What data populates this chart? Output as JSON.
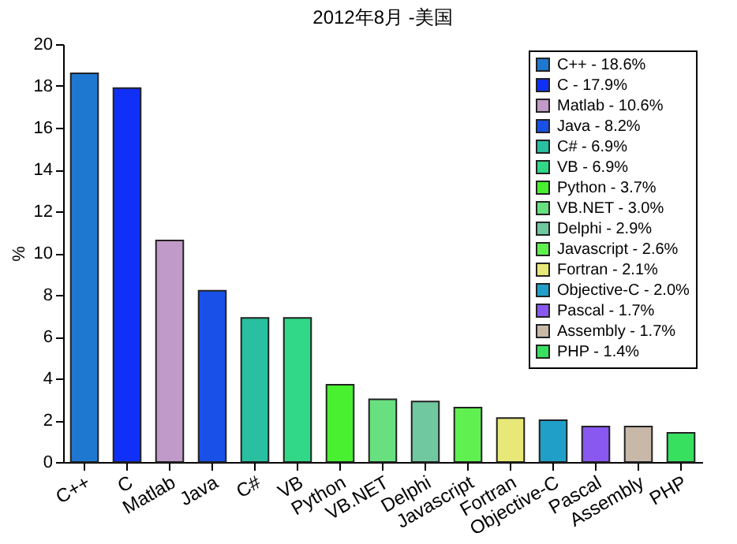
{
  "chart_data": {
    "type": "bar",
    "title": "2012年8月 -美国",
    "ylabel": "%",
    "categories": [
      "C++",
      "C",
      "Matlab",
      "Java",
      "C#",
      "VB",
      "Python",
      "VB.NET",
      "Delphi",
      "Javascript",
      "Fortran",
      "Objective-C",
      "Pascal",
      "Assembly",
      "PHP"
    ],
    "series": [
      {
        "name": "C++ - 18.6%",
        "color": "#1f78d0",
        "values": [
          18.6,
          null,
          null,
          null,
          null,
          null,
          null,
          null,
          null,
          null,
          null,
          null,
          null,
          null,
          null
        ]
      },
      {
        "name": "C - 17.9%",
        "color": "#1030f8",
        "values": [
          null,
          17.9,
          null,
          null,
          null,
          null,
          null,
          null,
          null,
          null,
          null,
          null,
          null,
          null,
          null
        ]
      },
      {
        "name": "Matlab - 10.6%",
        "color": "#c09ac8",
        "values": [
          null,
          null,
          10.6,
          null,
          null,
          null,
          null,
          null,
          null,
          null,
          null,
          null,
          null,
          null,
          null
        ]
      },
      {
        "name": "Java - 8.2%",
        "color": "#1850e8",
        "values": [
          null,
          null,
          null,
          8.2,
          null,
          null,
          null,
          null,
          null,
          null,
          null,
          null,
          null,
          null,
          null
        ]
      },
      {
        "name": "C# - 6.9%",
        "color": "#28c0a0",
        "values": [
          null,
          null,
          null,
          null,
          6.9,
          null,
          null,
          null,
          null,
          null,
          null,
          null,
          null,
          null,
          null
        ]
      },
      {
        "name": "VB - 6.9%",
        "color": "#30d888",
        "values": [
          null,
          null,
          null,
          null,
          null,
          6.9,
          null,
          null,
          null,
          null,
          null,
          null,
          null,
          null,
          null
        ]
      },
      {
        "name": "Python - 3.7%",
        "color": "#48f030",
        "values": [
          null,
          null,
          null,
          null,
          null,
          null,
          3.7,
          null,
          null,
          null,
          null,
          null,
          null,
          null,
          null
        ]
      },
      {
        "name": "VB.NET - 3.0%",
        "color": "#68e080",
        "values": [
          null,
          null,
          null,
          null,
          null,
          null,
          null,
          3.0,
          null,
          null,
          null,
          null,
          null,
          null,
          null
        ]
      },
      {
        "name": "Delphi - 2.9%",
        "color": "#70c8a0",
        "values": [
          null,
          null,
          null,
          null,
          null,
          null,
          null,
          null,
          2.9,
          null,
          null,
          null,
          null,
          null,
          null
        ]
      },
      {
        "name": "Javascript - 2.6%",
        "color": "#60f050",
        "values": [
          null,
          null,
          null,
          null,
          null,
          null,
          null,
          null,
          null,
          2.6,
          null,
          null,
          null,
          null,
          null
        ]
      },
      {
        "name": "Fortran - 2.1%",
        "color": "#e8e878",
        "values": [
          null,
          null,
          null,
          null,
          null,
          null,
          null,
          null,
          null,
          null,
          2.1,
          null,
          null,
          null,
          null
        ]
      },
      {
        "name": "Objective-C - 2.0%",
        "color": "#20a0c8",
        "values": [
          null,
          null,
          null,
          null,
          null,
          null,
          null,
          null,
          null,
          null,
          null,
          2.0,
          null,
          null,
          null
        ]
      },
      {
        "name": "Pascal - 1.7%",
        "color": "#8858f0",
        "values": [
          null,
          null,
          null,
          null,
          null,
          null,
          null,
          null,
          null,
          null,
          null,
          null,
          1.7,
          null,
          null
        ]
      },
      {
        "name": "Assembly - 1.7%",
        "color": "#c8b8a8",
        "values": [
          null,
          null,
          null,
          null,
          null,
          null,
          null,
          null,
          null,
          null,
          null,
          null,
          null,
          1.7,
          null
        ]
      },
      {
        "name": "PHP - 1.4%",
        "color": "#38e060",
        "values": [
          null,
          null,
          null,
          null,
          null,
          null,
          null,
          null,
          null,
          null,
          null,
          null,
          null,
          null,
          1.4
        ]
      }
    ],
    "ylim": [
      0,
      20
    ],
    "yticks": [
      0,
      2,
      4,
      6,
      8,
      10,
      12,
      14,
      16,
      18,
      20
    ],
    "legend": "top right"
  }
}
